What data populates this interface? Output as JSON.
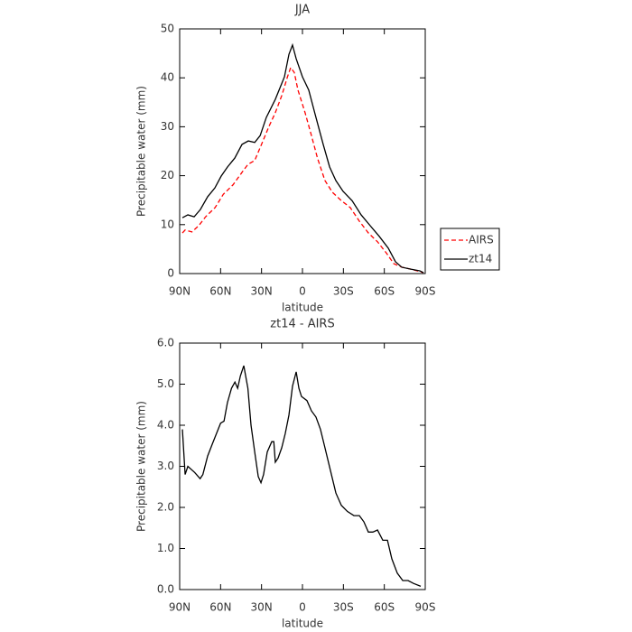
{
  "chart_data": [
    {
      "type": "line",
      "title": "JJA",
      "x_label": "latitude",
      "y_label": "Precipitable water (mm)",
      "xlim": [
        90,
        -90
      ],
      "xticks": [
        {
          "value": 90,
          "label": "90N"
        },
        {
          "value": 60,
          "label": "60N"
        },
        {
          "value": 30,
          "label": "30N"
        },
        0,
        {
          "value": -30,
          "label": "30S"
        },
        {
          "value": -60,
          "label": "60S"
        },
        {
          "value": -90,
          "label": "90S"
        }
      ],
      "ylim": [
        0,
        50
      ],
      "yticks": [
        0,
        10,
        20,
        30,
        40,
        50
      ],
      "legend": "right",
      "series": [
        {
          "name": "AIRS",
          "color": "#ff0000",
          "dashed": true,
          "x": [
            88,
            86,
            81,
            76,
            71,
            64,
            58,
            51,
            44,
            40,
            35,
            30,
            24.5,
            20,
            15,
            11,
            8.6,
            6,
            3.3,
            -2,
            -6.6,
            -11,
            -16.5,
            -22,
            -28.5,
            -35,
            -41.7,
            -48.3,
            -55,
            -61.5,
            -67,
            -73,
            -79.5,
            -88.7
          ],
          "values": [
            8.3,
            8.9,
            8.5,
            9.8,
            11.6,
            13.5,
            16.2,
            18.1,
            20.8,
            22.3,
            23.1,
            26.4,
            30.1,
            32.8,
            36.5,
            40.2,
            42.1,
            41.1,
            37.5,
            32.8,
            28.2,
            23.6,
            19,
            16.6,
            14.9,
            13.5,
            10.7,
            8.3,
            6.5,
            4.2,
            2,
            1.3,
            0.9,
            0.2
          ]
        },
        {
          "name": "zt14",
          "color": "#000000",
          "dashed": false,
          "x": [
            88,
            84,
            79.4,
            74.8,
            69.5,
            64.2,
            59.6,
            54.9,
            49.6,
            44.3,
            39.7,
            35,
            31,
            26.5,
            19.9,
            13.2,
            9.9,
            7.3,
            4.6,
            0,
            -4.6,
            -9.9,
            -15.2,
            -19.9,
            -24.5,
            -29.8,
            -36.4,
            -43,
            -49.6,
            -56.3,
            -62.9,
            -68.2,
            -72.8,
            -79.4,
            -86,
            -88.7
          ],
          "values": [
            11.4,
            12,
            11.6,
            13.1,
            15.7,
            17.5,
            19.9,
            21.8,
            23.6,
            26.4,
            27.1,
            26.8,
            28.2,
            31.9,
            35.6,
            40.2,
            44.8,
            46.7,
            43.9,
            40.2,
            37.5,
            31.9,
            26.4,
            21.8,
            19,
            16.8,
            14.9,
            12,
            9.8,
            7.6,
            5.2,
            2.4,
            1.3,
            0.9,
            0.55,
            0.2
          ]
        }
      ]
    },
    {
      "type": "line",
      "title": "zt14 - AIRS",
      "x_label": "latitude",
      "y_label": "Precipitable water (mm)",
      "xlim": [
        90,
        -90
      ],
      "xticks": [
        {
          "value": 90,
          "label": "90N"
        },
        {
          "value": 60,
          "label": "60N"
        },
        {
          "value": 30,
          "label": "30N"
        },
        0,
        {
          "value": -30,
          "label": "30S"
        },
        {
          "value": -60,
          "label": "60S"
        },
        {
          "value": -90,
          "label": "90S"
        }
      ],
      "ylim": [
        0,
        6
      ],
      "yticks": [
        {
          "value": 0,
          "label": "0.0"
        },
        {
          "value": 1,
          "label": "1.0"
        },
        {
          "value": 2,
          "label": "2.0"
        },
        {
          "value": 3,
          "label": "3.0"
        },
        {
          "value": 4,
          "label": "4.0"
        },
        {
          "value": 5,
          "label": "5.0"
        },
        {
          "value": 6,
          "label": "6.0"
        }
      ],
      "series": [
        {
          "color": "#000000",
          "dashed": false,
          "x": [
            88,
            86,
            84,
            79,
            75,
            73,
            69.5,
            66,
            63,
            60,
            57.5,
            55,
            52,
            49.5,
            47.5,
            45.5,
            43,
            40,
            37.7,
            35,
            32.4,
            30.4,
            28.5,
            25.8,
            22.5,
            21,
            19.9,
            17.9,
            15.2,
            12.6,
            9.9,
            7.3,
            4.6,
            2.6,
            0.7,
            -3.3,
            -6.6,
            -9.9,
            -13.2,
            -16.5,
            -20.5,
            -24.5,
            -28.5,
            -33,
            -37.7,
            -41.7,
            -45,
            -48.3,
            -51.6,
            -55,
            -58.9,
            -62.3,
            -65.5,
            -69.5,
            -73.5,
            -77.4,
            -81.4,
            -86.7
          ],
          "values": [
            3.9,
            2.8,
            3.0,
            2.85,
            2.7,
            2.8,
            3.25,
            3.55,
            3.8,
            4.05,
            4.1,
            4.55,
            4.9,
            5.05,
            4.9,
            5.2,
            5.45,
            4.9,
            4.0,
            3.35,
            2.75,
            2.6,
            2.8,
            3.35,
            3.6,
            3.6,
            3.1,
            3.2,
            3.45,
            3.8,
            4.25,
            4.95,
            5.3,
            4.9,
            4.7,
            4.6,
            4.35,
            4.2,
            3.9,
            3.45,
            2.9,
            2.35,
            2.05,
            1.9,
            1.8,
            1.8,
            1.65,
            1.4,
            1.4,
            1.45,
            1.2,
            1.2,
            0.75,
            0.4,
            0.22,
            0.22,
            0.15,
            0.08
          ]
        }
      ]
    }
  ]
}
